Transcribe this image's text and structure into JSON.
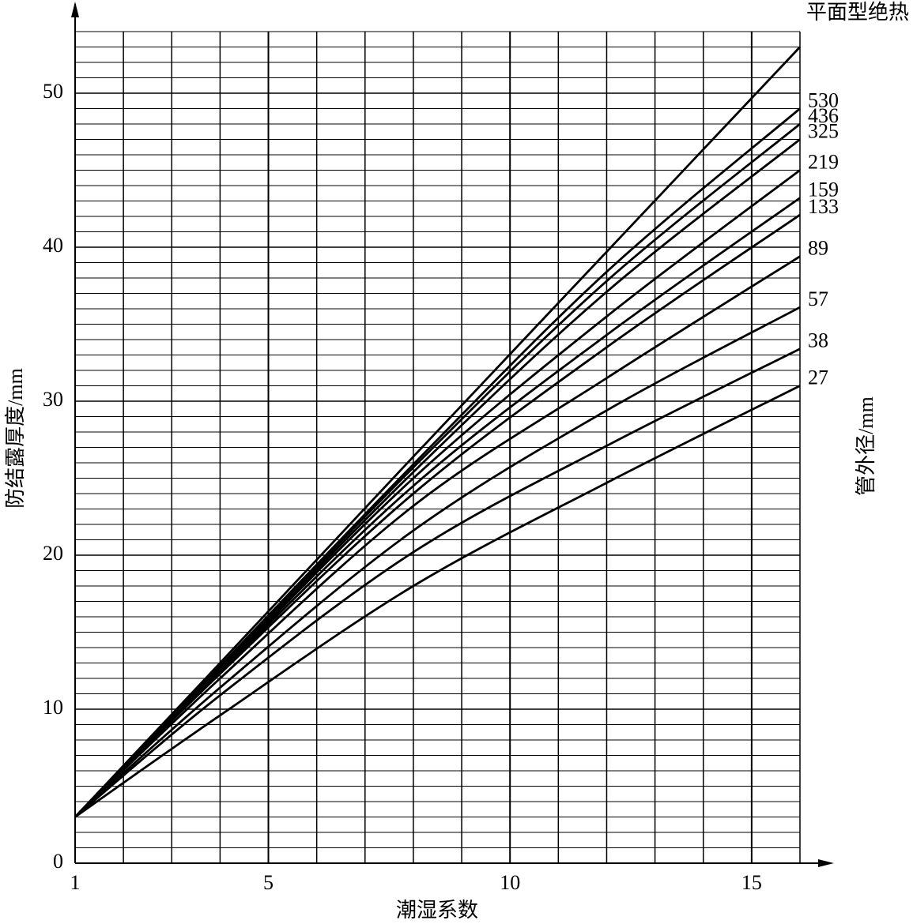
{
  "chart_data": {
    "type": "line",
    "x_label": "潮湿系数",
    "y_label": "防结露厚度/mm",
    "series_label": "管外径/mm",
    "x": [
      1,
      4,
      8,
      12,
      16
    ],
    "xlim": [
      1,
      16
    ],
    "ylim": [
      0,
      54
    ],
    "xticks": [
      1,
      5,
      10,
      15
    ],
    "yticks": [
      0,
      10,
      20,
      30,
      40,
      50
    ],
    "grid": true,
    "minor_grid": true,
    "color": "#000000",
    "series": [
      {
        "name": "平面型绝热",
        "values": [
          3,
          13,
          26.4,
          39.7,
          53
        ]
      },
      {
        "name": "530",
        "values": [
          3,
          12.8,
          25.9,
          38.4,
          49
        ]
      },
      {
        "name": "436",
        "values": [
          3,
          12.7,
          25.7,
          37.8,
          48
        ]
      },
      {
        "name": "325",
        "values": [
          3,
          12.6,
          25.4,
          37.1,
          47
        ]
      },
      {
        "name": "219",
        "values": [
          3,
          12.5,
          25,
          35.5,
          45
        ]
      },
      {
        "name": "159",
        "values": [
          3,
          12.4,
          24.5,
          34.3,
          43.2
        ]
      },
      {
        "name": "133",
        "values": [
          3,
          12.3,
          24,
          33.5,
          42.1
        ]
      },
      {
        "name": "89",
        "values": [
          3,
          12,
          23.2,
          31.5,
          39.4
        ]
      },
      {
        "name": "57",
        "values": [
          3,
          11.4,
          21.6,
          29.4,
          36.1
        ]
      },
      {
        "name": "38",
        "values": [
          3,
          10.9,
          20.2,
          27.1,
          33.4
        ]
      },
      {
        "name": "27",
        "values": [
          3,
          9.6,
          18,
          24.7,
          31
        ]
      }
    ]
  }
}
